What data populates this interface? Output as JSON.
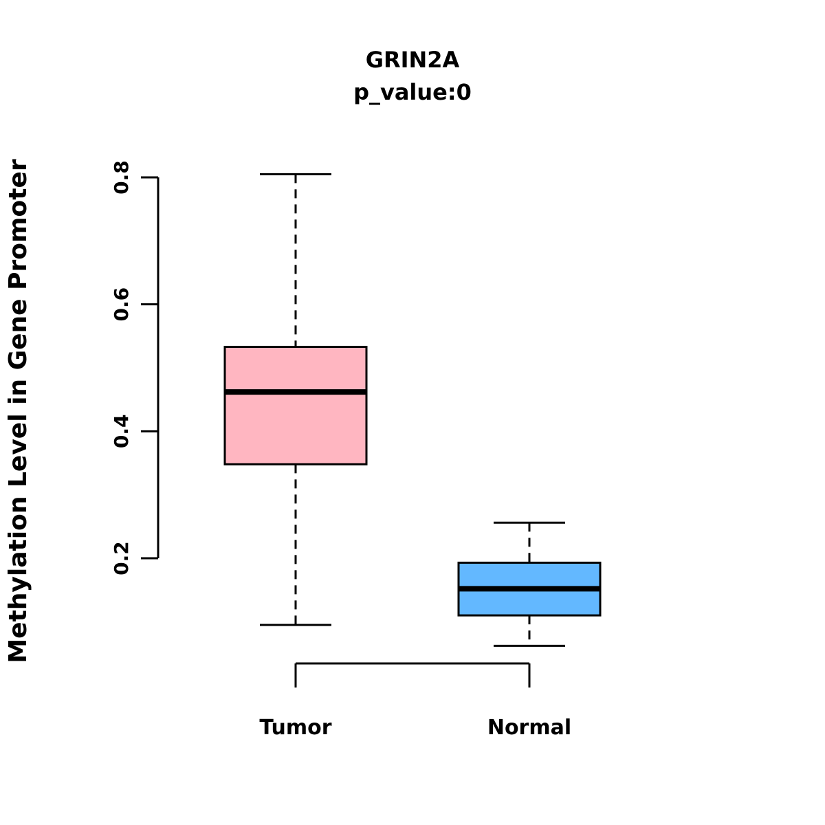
{
  "chart_data": {
    "type": "boxplot",
    "title": "GRIN2A",
    "subtitle": "p_value:0",
    "ylabel": "Methylation Level in Gene Promoter",
    "xlabel": "",
    "categories": [
      "Tumor",
      "Normal"
    ],
    "series": [
      {
        "name": "Tumor",
        "min": 0.095,
        "q1": 0.348,
        "median": 0.462,
        "q3": 0.533,
        "max": 0.805,
        "color": "#FFB6C1"
      },
      {
        "name": "Normal",
        "min": 0.062,
        "q1": 0.11,
        "median": 0.152,
        "q3": 0.193,
        "max": 0.256,
        "color": "#63B8FF"
      }
    ],
    "yticks": [
      "0.2",
      "0.4",
      "0.6",
      "0.8"
    ],
    "ylim": [
      0.05,
      0.82
    ],
    "grid": "off",
    "legend": "none",
    "whisker_style": "dashed",
    "box_border_color": "#000000",
    "background_color": "#FFFFFF"
  }
}
